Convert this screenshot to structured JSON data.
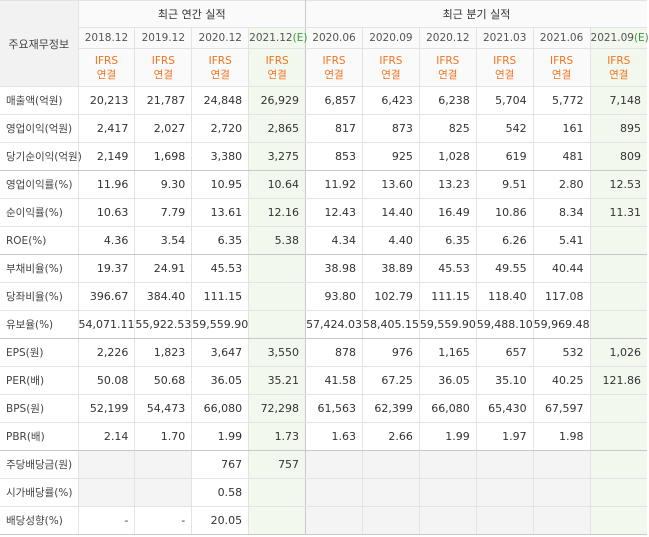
{
  "table": {
    "corner": "주요재무정보",
    "annual_title": "최근 연간 실적",
    "quarter_title": "최근 분기 실적",
    "annual_count": 4,
    "periods": [
      {
        "label": "2018.12"
      },
      {
        "label": "2019.12"
      },
      {
        "label": "2020.12"
      },
      {
        "label": "2021.12",
        "mark": "(E)"
      },
      {
        "label": "2020.06"
      },
      {
        "label": "2020.09"
      },
      {
        "label": "2020.12"
      },
      {
        "label": "2021.03"
      },
      {
        "label": "2021.06"
      },
      {
        "label": "2021.09",
        "mark": "(E)"
      }
    ],
    "basis": [
      {
        "top": "IFRS",
        "bottom": "연결"
      },
      {
        "top": "IFRS",
        "bottom": "연결"
      },
      {
        "top": "IFRS",
        "bottom": "연결"
      },
      {
        "top": "IFRS",
        "bottom": "연결"
      },
      {
        "top": "IFRS",
        "bottom": "연결"
      },
      {
        "top": "IFRS",
        "bottom": "연결"
      },
      {
        "top": "IFRS",
        "bottom": "연결"
      },
      {
        "top": "IFRS",
        "bottom": "연결"
      },
      {
        "top": "IFRS",
        "bottom": "연결"
      },
      {
        "top": "IFRS",
        "bottom": "연결"
      }
    ],
    "groups": [
      {
        "rows": [
          {
            "label": "매출액(억원)",
            "values": [
              "20,213",
              "21,787",
              "24,848",
              "26,929",
              "6,857",
              "6,423",
              "6,238",
              "5,704",
              "5,772",
              "7,148"
            ]
          },
          {
            "label": "영업이익(억원)",
            "values": [
              "2,417",
              "2,027",
              "2,720",
              "2,865",
              "817",
              "873",
              "825",
              "542",
              "161",
              "895"
            ]
          },
          {
            "label": "당기순이익(억원)",
            "values": [
              "2,149",
              "1,698",
              "3,380",
              "3,275",
              "853",
              "925",
              "1,028",
              "619",
              "481",
              "809"
            ]
          }
        ]
      },
      {
        "rows": [
          {
            "label": "영업이익률(%)",
            "values": [
              "11.96",
              "9.30",
              "10.95",
              "10.64",
              "11.92",
              "13.60",
              "13.23",
              "9.51",
              "2.80",
              "12.53"
            ]
          },
          {
            "label": "순이익률(%)",
            "values": [
              "10.63",
              "7.79",
              "13.61",
              "12.16",
              "12.43",
              "14.40",
              "16.49",
              "10.86",
              "8.34",
              "11.31"
            ]
          },
          {
            "label": "ROE(%)",
            "values": [
              "4.36",
              "3.54",
              "6.35",
              "5.38",
              "4.34",
              "4.40",
              "6.35",
              "6.26",
              "5.41",
              null
            ]
          }
        ]
      },
      {
        "rows": [
          {
            "label": "부채비율(%)",
            "values": [
              "19.37",
              "24.91",
              "45.53",
              null,
              "38.98",
              "38.89",
              "45.53",
              "49.55",
              "40.44",
              null
            ]
          },
          {
            "label": "당좌비율(%)",
            "values": [
              "396.67",
              "384.40",
              "111.15",
              null,
              "93.80",
              "102.79",
              "111.15",
              "118.40",
              "117.08",
              null
            ]
          },
          {
            "label": "유보율(%)",
            "values": [
              "54,071.11",
              "55,922.53",
              "59,559.90",
              null,
              "57,424.03",
              "58,405.15",
              "59,559.90",
              "59,488.10",
              "59,969.48",
              null
            ]
          }
        ]
      },
      {
        "rows": [
          {
            "label": "EPS(원)",
            "values": [
              "2,226",
              "1,823",
              "3,647",
              "3,550",
              "878",
              "976",
              "1,165",
              "657",
              "532",
              "1,026"
            ]
          },
          {
            "label": "PER(배)",
            "values": [
              "50.08",
              "50.68",
              "36.05",
              "35.21",
              "41.58",
              "67.25",
              "36.05",
              "35.10",
              "40.25",
              "121.86"
            ]
          },
          {
            "label": "BPS(원)",
            "values": [
              "52,199",
              "54,473",
              "66,080",
              "72,298",
              "61,563",
              "62,399",
              "66,080",
              "65,430",
              "67,597",
              null
            ]
          },
          {
            "label": "PBR(배)",
            "values": [
              "2.14",
              "1.70",
              "1.99",
              "1.73",
              "1.63",
              "2.66",
              "1.99",
              "1.97",
              "1.98",
              null
            ]
          }
        ]
      },
      {
        "rows": [
          {
            "label": "주당배당금(원)",
            "values": [
              null,
              null,
              "767",
              "757",
              null,
              null,
              null,
              null,
              null,
              null
            ]
          },
          {
            "label": "시가배당률(%)",
            "values": [
              null,
              null,
              "0.58",
              null,
              null,
              null,
              null,
              null,
              null,
              null
            ]
          },
          {
            "label": "배당성향(%)",
            "values": [
              "-",
              "-",
              "20.05",
              null,
              null,
              null,
              null,
              null,
              null,
              null
            ]
          }
        ]
      }
    ]
  }
}
